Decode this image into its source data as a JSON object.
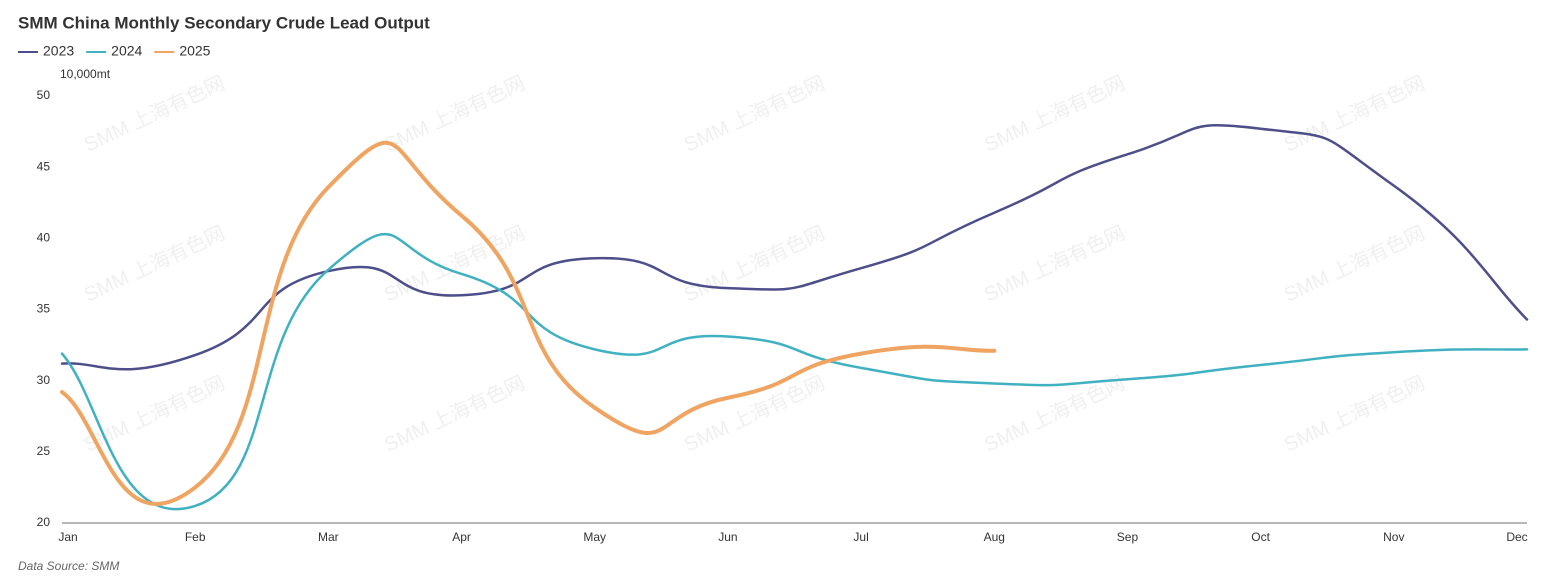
{
  "chart_data": {
    "type": "line",
    "title": "SMM China Monthly Secondary Crude Lead Output",
    "y_label": "10,000mt",
    "source": "Data Source: SMM",
    "watermark": "SMM 上海有色网",
    "categories": [
      "Jan",
      "Feb",
      "Mar",
      "Apr",
      "May",
      "Jun",
      "Jul",
      "Aug",
      "Sep",
      "Oct",
      "Nov",
      "Dec"
    ],
    "series": [
      {
        "name": "2023",
        "color": "#4e4e8a",
        "values": [
          31.2,
          31.8,
          37.7,
          36.0,
          38.6,
          36.5,
          37.9,
          41.8,
          45.9,
          47.7,
          43.7,
          34.3
        ]
      },
      {
        "name": "2024",
        "color": "#3fb1c0",
        "values": [
          31.9,
          21.2,
          37.8,
          37.5,
          32.2,
          33.1,
          30.9,
          29.8,
          30.1,
          31.1,
          32.0,
          32.2
        ]
      },
      {
        "name": "2025",
        "color": "#f0a462",
        "values": [
          29.2,
          22.5,
          43.6,
          41.6,
          28.1,
          28.8,
          31.9,
          32.1,
          null,
          null,
          null,
          null
        ]
      }
    ],
    "ylim": [
      20,
      50
    ],
    "yticks": [
      20,
      25,
      30,
      35,
      40,
      45,
      50
    ],
    "grid": false,
    "legend": "top-left"
  }
}
